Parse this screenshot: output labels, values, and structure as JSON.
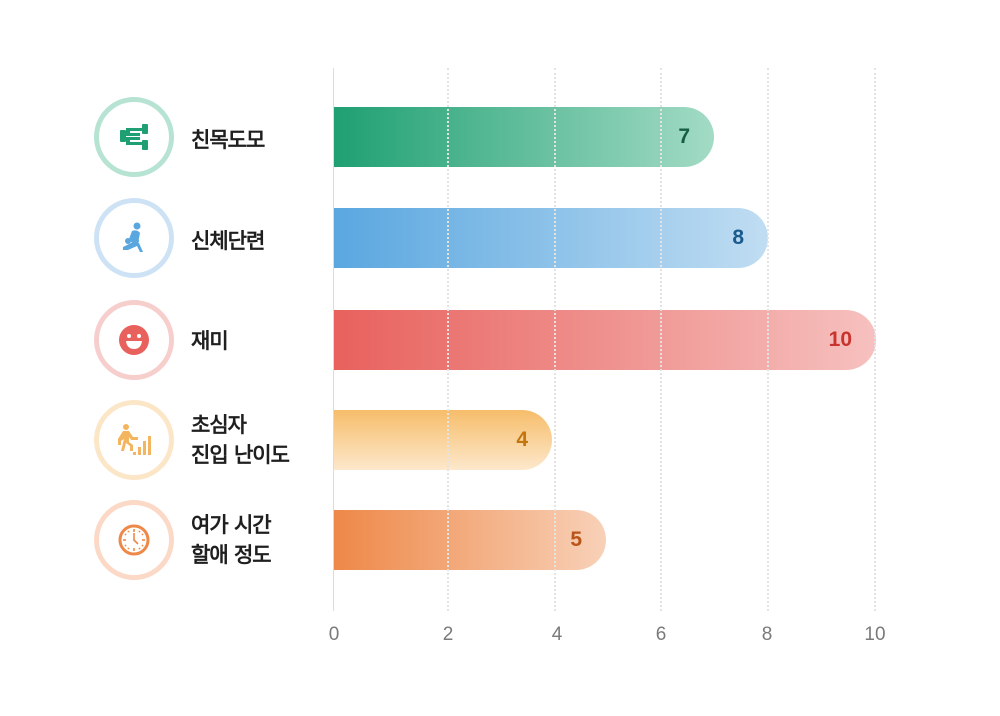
{
  "chart_data": {
    "type": "bar",
    "orientation": "horizontal",
    "title": "",
    "xlabel": "",
    "ylabel": "",
    "xlim": [
      0,
      10
    ],
    "x_ticks": [
      "0",
      "2",
      "4",
      "6",
      "8",
      "10"
    ],
    "grid": "vertical dotted",
    "categories": [
      "친목도모",
      "신체단련",
      "재미",
      "초심자 진입 난이도",
      "여가 시간 할애 정도"
    ],
    "values": [
      7,
      8,
      10,
      4,
      5
    ],
    "data_labels": [
      "7",
      "8",
      "10",
      "4",
      "5"
    ]
  },
  "rows": [
    {
      "label_lines": [
        "친목도모"
      ],
      "value": "7",
      "icon": "handshake-icon",
      "ring_color": "#b7e3d2",
      "icon_color": "#1fa072",
      "bar_from": "#1fa072",
      "bar_to": "#a3dbc5",
      "gradient_dir": "to right",
      "value_color": "#155e43"
    },
    {
      "label_lines": [
        "신체단련"
      ],
      "value": "8",
      "icon": "exercise-lunge-icon",
      "ring_color": "#cde3f5",
      "icon_color": "#5aa7e0",
      "bar_from": "#5aa7e0",
      "bar_to": "#c0ddf2",
      "gradient_dir": "to right",
      "value_color": "#1a5a8c"
    },
    {
      "label_lines": [
        "재미"
      ],
      "value": "10",
      "icon": "smiley-face-icon",
      "ring_color": "#f6cfcd",
      "icon_color": "#e8615d",
      "bar_from": "#e8615d",
      "bar_to": "#f6c1bf",
      "gradient_dir": "to right",
      "value_color": "#c9332d"
    },
    {
      "label_lines": [
        "초심자",
        "진입 난이도"
      ],
      "value": "4",
      "icon": "stairs-climber-icon",
      "ring_color": "#fce6c8",
      "icon_color": "#f3b55f",
      "bar_from": "#f6bd6a",
      "bar_to": "#fde8cc",
      "gradient_dir": "to bottom",
      "value_color": "#c2760d"
    },
    {
      "label_lines": [
        "여가 시간",
        "할애 정도"
      ],
      "value": "5",
      "icon": "clock-icon",
      "ring_color": "#fbd9c6",
      "icon_color": "#ee8848",
      "bar_from": "#ee8848",
      "bar_to": "#f8d1b8",
      "gradient_dir": "to right",
      "value_color": "#b9541a"
    }
  ]
}
